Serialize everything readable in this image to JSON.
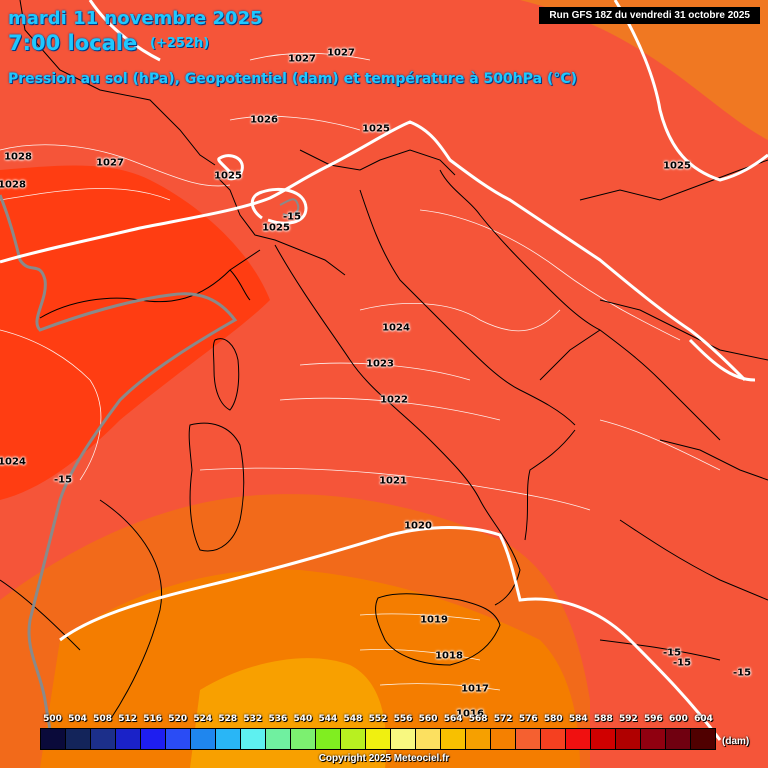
{
  "header": {
    "date_line": "mardi 11 novembre 2025",
    "time_line": "7:00 locale",
    "lead_time": "(+252h)",
    "subtitle": "Pression au sol (hPa), Geopotentiel (dam) et température à 500hPa (°C)",
    "run_info": "Run GFS 18Z du vendredi 31 octobre 2025"
  },
  "isobars": [
    {
      "id": "iso-1028-a",
      "label": "1028"
    },
    {
      "id": "iso-1028-b",
      "label": "1028"
    },
    {
      "id": "iso-1027-a",
      "label": "1027"
    },
    {
      "id": "iso-1027-b",
      "label": "1027"
    },
    {
      "id": "iso-1027-c",
      "label": "1027"
    },
    {
      "id": "iso-1026",
      "label": "1026"
    },
    {
      "id": "iso-1025-a",
      "label": "1025"
    },
    {
      "id": "iso-1025-b",
      "label": "1025"
    },
    {
      "id": "iso-1025-c",
      "label": "1025"
    },
    {
      "id": "iso-1025-d",
      "label": "1025"
    },
    {
      "id": "iso-1024-a",
      "label": "1024"
    },
    {
      "id": "iso-1024-b",
      "label": "1024"
    },
    {
      "id": "iso-1023",
      "label": "1023"
    },
    {
      "id": "iso-1022",
      "label": "1022"
    },
    {
      "id": "iso-1021",
      "label": "1021"
    },
    {
      "id": "iso-1020",
      "label": "1020"
    },
    {
      "id": "iso-1019",
      "label": "1019"
    },
    {
      "id": "iso-1018",
      "label": "1018"
    },
    {
      "id": "iso-1017",
      "label": "1017"
    },
    {
      "id": "iso-1016",
      "label": "1016"
    }
  ],
  "temperature_labels": [
    {
      "id": "temp-alps",
      "label": "-15"
    },
    {
      "id": "temp-west",
      "label": "-15"
    },
    {
      "id": "temp-se-a",
      "label": "-15"
    },
    {
      "id": "temp-se-b",
      "label": "-15"
    },
    {
      "id": "temp-se-c",
      "label": "-15"
    }
  ],
  "legend": {
    "unit": "(dam)",
    "ticks": [
      "500",
      "504",
      "508",
      "512",
      "516",
      "520",
      "524",
      "528",
      "532",
      "536",
      "540",
      "544",
      "548",
      "552",
      "556",
      "560",
      "564",
      "568",
      "572",
      "576",
      "580",
      "584",
      "588",
      "592",
      "596",
      "600",
      "604"
    ],
    "colors": [
      "#0a0a3a",
      "#13245a",
      "#1c2f8a",
      "#1a22c8",
      "#1e1ef0",
      "#2a4cf5",
      "#1f86ee",
      "#29b6f6",
      "#5ef0f0",
      "#70f0a0",
      "#7cf070",
      "#80ee20",
      "#b8f020",
      "#f0f010",
      "#f8f880",
      "#fce060",
      "#f8c000",
      "#f6a000",
      "#f58000",
      "#f56030",
      "#f54020",
      "#f01010",
      "#d00000",
      "#b00000",
      "#900010",
      "#700010",
      "#500000"
    ]
  },
  "map_colors": {
    "field_572": "#f55539",
    "field_568": "#f06018",
    "field_576": "#ff3a10",
    "field_564": "#f57e00",
    "field_560": "#f9a300"
  },
  "footer": {
    "copyright": "Copyright 2025 Meteociel.fr"
  }
}
